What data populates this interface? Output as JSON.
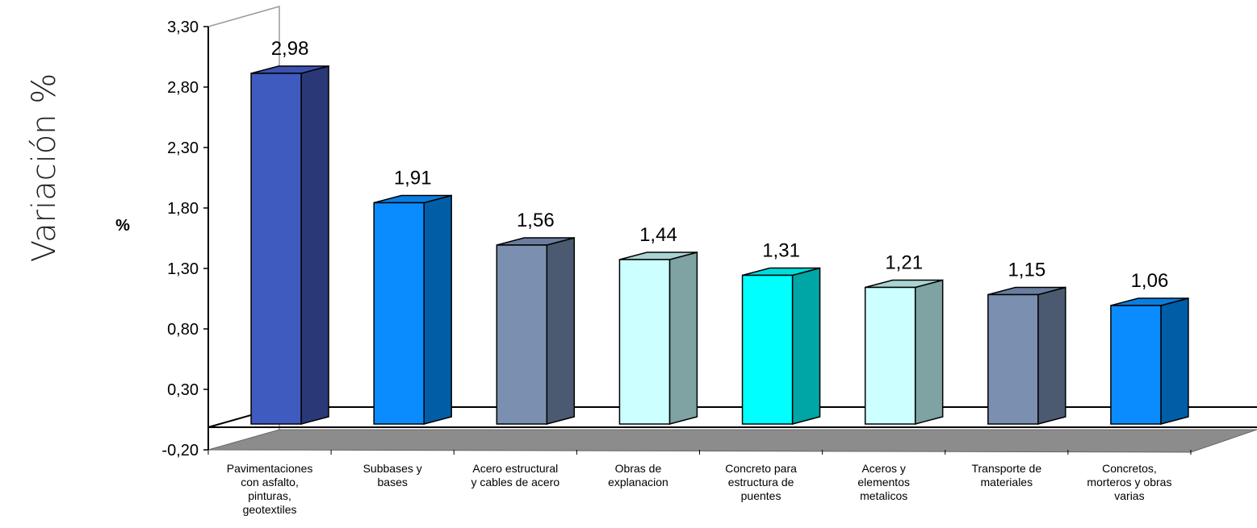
{
  "outer_title": "Variación %",
  "chart_data": {
    "type": "bar",
    "ylabel": "%",
    "ylim": [
      -0.2,
      3.3
    ],
    "yticks": [
      "3,30",
      "2,80",
      "2,30",
      "1,80",
      "1,30",
      "0,80",
      "0,30",
      "-0,20"
    ],
    "yticks_values": [
      3.3,
      2.8,
      2.3,
      1.8,
      1.3,
      0.8,
      0.3,
      -0.2
    ],
    "categories": [
      [
        "Pavimentaciones",
        "con asfalto,",
        "pinturas,",
        "geotextiles"
      ],
      [
        "Subbases y",
        "bases"
      ],
      [
        "Acero estructural",
        "y cables de acero"
      ],
      [
        "Obras de",
        "explanacion"
      ],
      [
        "Concreto para",
        "estructura de",
        "puentes"
      ],
      [
        "Aceros y",
        "elementos",
        "metalicos"
      ],
      [
        "Transporte de",
        "materiales"
      ],
      [
        "Concretos,",
        "morteros y obras",
        "varias"
      ]
    ],
    "values": [
      2.98,
      1.91,
      1.56,
      1.44,
      1.31,
      1.21,
      1.15,
      1.06
    ],
    "value_labels": [
      "2,98",
      "1,91",
      "1,56",
      "1,44",
      "1,31",
      "1,21",
      "1,15",
      "1,06"
    ],
    "colors": [
      {
        "front": "#3f5bbf",
        "side": "#2a3878",
        "top": "#3a52b0"
      },
      {
        "front": "#0a8cff",
        "side": "#005da6",
        "top": "#0a7ee0"
      },
      {
        "front": "#7b8fb0",
        "side": "#4b5a70",
        "top": "#6a7d9e"
      },
      {
        "front": "#ccffff",
        "side": "#7fa2a2",
        "top": "#a9d4d4"
      },
      {
        "front": "#00ffff",
        "side": "#00a5a5",
        "top": "#00dcdc"
      },
      {
        "front": "#ccffff",
        "side": "#7fa2a2",
        "top": "#a9d4d4"
      },
      {
        "front": "#7b8fb0",
        "side": "#4b5a70",
        "top": "#6a7d9e"
      },
      {
        "front": "#0a8cff",
        "side": "#005da6",
        "top": "#0a7ee0"
      }
    ],
    "floor_color": "#8c8c8c",
    "grid": false
  }
}
